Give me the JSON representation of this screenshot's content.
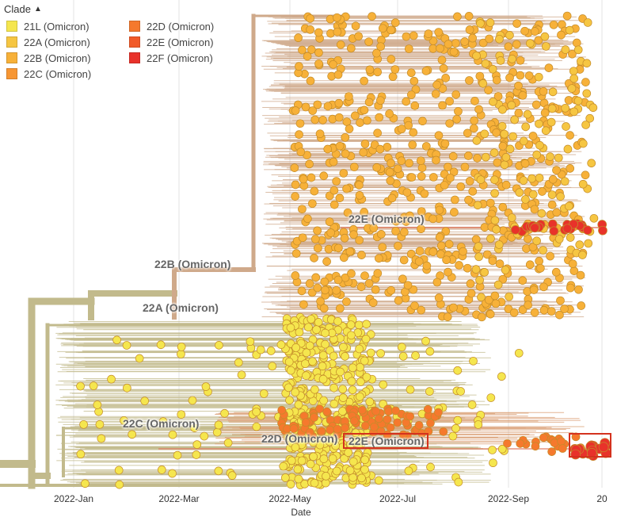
{
  "legend": {
    "title": "Clade",
    "items": [
      {
        "label": "21L (Omicron)",
        "color": "#f5e64e"
      },
      {
        "label": "22A (Omicron)",
        "color": "#f6c642"
      },
      {
        "label": "22B (Omicron)",
        "color": "#f7b139"
      },
      {
        "label": "22C (Omicron)",
        "color": "#f79633"
      },
      {
        "label": "22D (Omicron)",
        "color": "#f5792d"
      },
      {
        "label": "22E (Omicron)",
        "color": "#f15a28"
      },
      {
        "label": "22F (Omicron)",
        "color": "#e8322a"
      }
    ]
  },
  "clade_labels": {
    "c22b": "22B (Omicron)",
    "c22a": "22A (Omicron)",
    "c22c": "22C (Omicron)",
    "c22d": "22D (Omicron)",
    "c22e_upper": "22E (Omicron)",
    "c22e_lower": "22E (Omicron)"
  },
  "axis": {
    "title": "Date",
    "ticks": [
      "2022-Jan",
      "2022-Mar",
      "2022-May",
      "2022-Jul",
      "2022-Sep",
      "20"
    ]
  },
  "colors": {
    "branch": "#c2ba8c",
    "branch_upper": "#cfa98a",
    "highlight": "#d4321e",
    "grid": "#e3e3e3"
  }
}
